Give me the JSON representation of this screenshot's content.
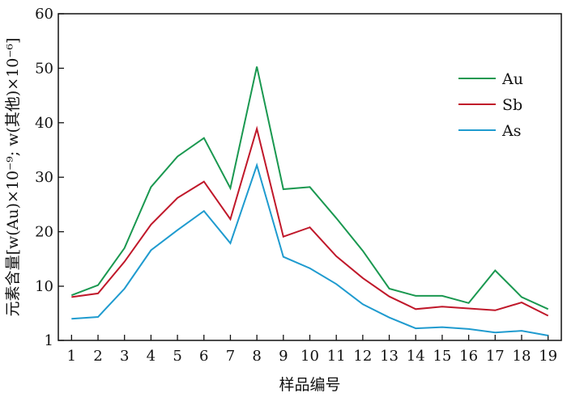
{
  "chart_data": {
    "type": "line",
    "title": "",
    "xlabel": "样品编号",
    "ylabel": "元素含量[w(Au)×10⁻⁹; w(其他)×10⁻⁶]",
    "x": [
      1,
      2,
      3,
      4,
      5,
      6,
      7,
      8,
      9,
      10,
      11,
      12,
      13,
      14,
      15,
      16,
      17,
      18,
      19
    ],
    "x_tick_labels": [
      "1",
      "2",
      "3",
      "4",
      "5",
      "6",
      "7",
      "8",
      "9",
      "10",
      "11",
      "12",
      "13",
      "14",
      "15",
      "16",
      "17",
      "18",
      "19"
    ],
    "y_ticks": [
      1,
      10,
      20,
      30,
      40,
      50,
      60
    ],
    "y_tick_labels": [
      "1",
      "10",
      "20",
      "30",
      "40",
      "50",
      "60"
    ],
    "ylim": [
      1,
      60
    ],
    "xlim": [
      0.5,
      19.5
    ],
    "grid": false,
    "legend_position": "top-right",
    "series": [
      {
        "name": "Au",
        "color": "#1a9850",
        "values": [
          8.5,
          10.2,
          17,
          28.2,
          33.8,
          37.2,
          28,
          50.3,
          27.8,
          28.2,
          22.5,
          16.5,
          9.6,
          8.4,
          8.4,
          7.2,
          12.9,
          8.2,
          6.2
        ]
      },
      {
        "name": "Sb",
        "color": "#c0182a",
        "values": [
          8.2,
          8.8,
          14.5,
          21.3,
          26.2,
          29.2,
          22.3,
          38.9,
          19.1,
          20.8,
          15.5,
          11.5,
          8.3,
          6.2,
          6.6,
          6.3,
          6,
          7.3,
          5.1
        ]
      },
      {
        "name": "As",
        "color": "#1f9bcf",
        "values": [
          4.6,
          4.9,
          9.6,
          16.6,
          20.3,
          23.8,
          17.9,
          32.2,
          15.4,
          13.3,
          10.4,
          7,
          4.8,
          3,
          3.2,
          2.9,
          2.3,
          2.6,
          1.8
        ]
      }
    ]
  }
}
